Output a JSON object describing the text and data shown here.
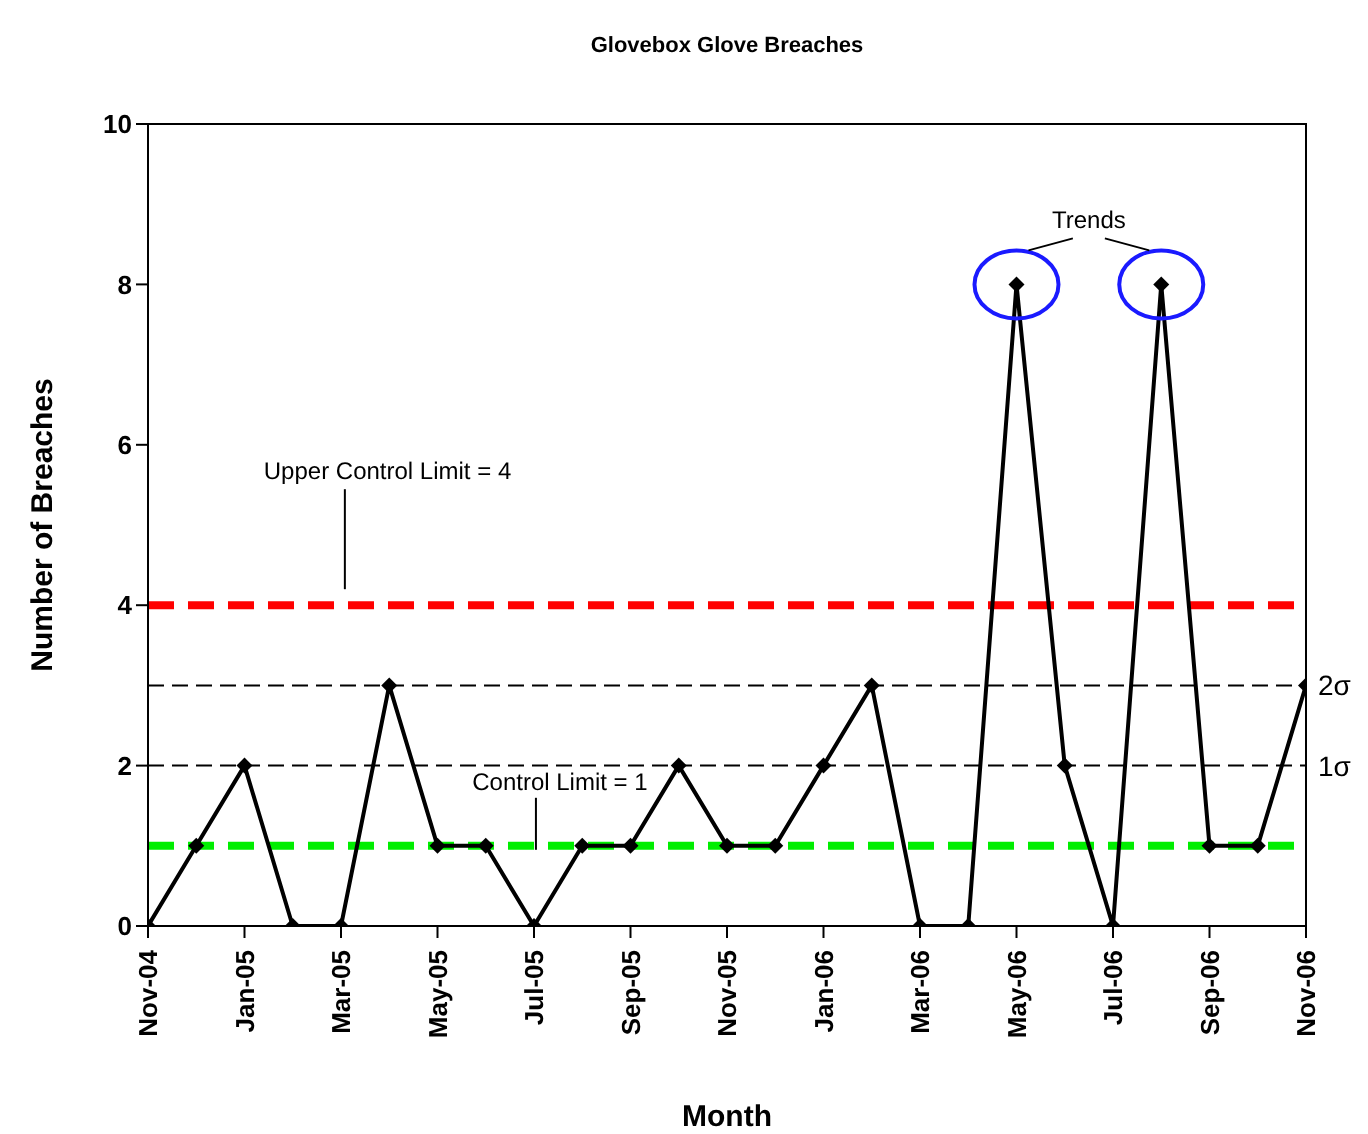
{
  "chart_data": {
    "type": "line",
    "title": "Glovebox Glove Breaches",
    "xlabel": "Month",
    "ylabel": "Number of Breaches",
    "categories": [
      "Nov-04",
      null,
      "Jan-05",
      null,
      "Mar-05",
      null,
      "May-05",
      null,
      "Jul-05",
      null,
      "Sep-05",
      null,
      "Nov-05",
      null,
      "Jan-06",
      null,
      "Mar-06",
      null,
      "May-06",
      null,
      "Jul-06",
      null,
      "Sep-06",
      null,
      "Nov-06"
    ],
    "series": [
      {
        "color": "#000000",
        "values": [
          0,
          1,
          2,
          0,
          0,
          3,
          1,
          1,
          0,
          1,
          1,
          2,
          1,
          1,
          2,
          3,
          0,
          0,
          8,
          2,
          0,
          8,
          1,
          1,
          3
        ]
      }
    ],
    "ylim": [
      0,
      10
    ],
    "yticks": [
      0,
      2,
      4,
      6,
      8,
      10
    ],
    "marker": "diamond",
    "line_style": "solid",
    "ref_lines": [
      {
        "axis": "y",
        "value": 4,
        "label": "Upper Control Limit = 4",
        "color": "#ff0000",
        "line_style": "dashed"
      },
      {
        "axis": "y",
        "value": 1,
        "label": "Control Limit = 1",
        "color": "#00ee00",
        "line_style": "dashed"
      },
      {
        "axis": "y",
        "value": 3,
        "label": "2σ",
        "color": "#000000",
        "line_style": "dashed"
      },
      {
        "axis": "y",
        "value": 2,
        "label": "1σ",
        "color": "#000000",
        "line_style": "dashed"
      }
    ],
    "annotations": [
      "Trends"
    ]
  }
}
